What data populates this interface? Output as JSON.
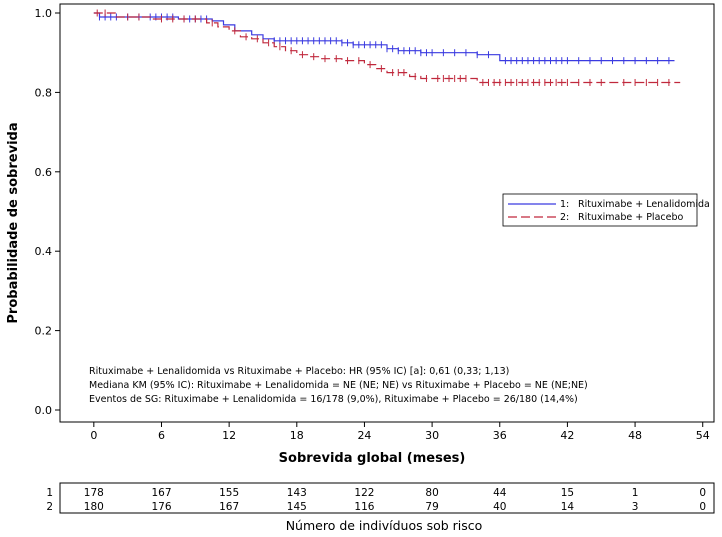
{
  "chart_data": {
    "type": "line",
    "subtype": "kaplan-meier",
    "xlabel": "Sobrevida global (meses)",
    "ylabel": "Probabilidade de sobrevida",
    "xlim": [
      -3,
      55
    ],
    "ylim": [
      0,
      1.0
    ],
    "xticks": [
      "0",
      "6",
      "12",
      "18",
      "24",
      "30",
      "36",
      "42",
      "48",
      "54"
    ],
    "yticks": [
      "0.0",
      "0.2",
      "0.4",
      "0.6",
      "0.8",
      "1.0"
    ],
    "legend_position": "right",
    "series": [
      {
        "name": "Rituximabe + Lenalidomida",
        "legend_number": "1:",
        "color": "#3a3ae0",
        "style": "solid",
        "steps": [
          [
            0,
            1.0
          ],
          [
            0.5,
            0.99
          ],
          [
            7.5,
            0.985
          ],
          [
            10.5,
            0.98
          ],
          [
            11.5,
            0.97
          ],
          [
            12.5,
            0.955
          ],
          [
            14,
            0.945
          ],
          [
            15,
            0.935
          ],
          [
            16,
            0.93
          ],
          [
            18,
            0.93
          ],
          [
            22,
            0.925
          ],
          [
            23,
            0.92
          ],
          [
            26,
            0.91
          ],
          [
            27,
            0.905
          ],
          [
            29,
            0.9
          ],
          [
            34,
            0.895
          ],
          [
            36,
            0.88
          ],
          [
            51.5,
            0.88
          ]
        ],
        "censors": [
          0.5,
          1,
          1.5,
          2,
          3,
          4,
          5,
          5.5,
          6,
          6.5,
          7,
          8,
          8.5,
          9,
          9.5,
          10,
          16,
          16.5,
          17,
          17.5,
          18,
          18.5,
          19,
          19.5,
          20,
          20.5,
          21,
          21.5,
          22,
          22.5,
          23,
          23.5,
          24,
          24.5,
          25,
          25.5,
          26,
          26.5,
          27,
          27.5,
          28,
          28.5,
          29,
          29.5,
          30,
          31,
          32,
          33,
          34,
          35,
          36.5,
          37,
          37.5,
          38,
          38.5,
          39,
          39.5,
          40,
          40.5,
          41,
          41.5,
          42,
          43,
          44,
          45,
          46,
          47,
          48,
          49,
          50,
          51
        ]
      },
      {
        "name": "Rituximabe + Placebo",
        "legend_number": "2:",
        "color": "#c0283c",
        "style": "dashed",
        "steps": [
          [
            0,
            1.0
          ],
          [
            2,
            0.99
          ],
          [
            5,
            0.985
          ],
          [
            10,
            0.975
          ],
          [
            11,
            0.965
          ],
          [
            12,
            0.955
          ],
          [
            13,
            0.94
          ],
          [
            14,
            0.935
          ],
          [
            15,
            0.925
          ],
          [
            16,
            0.915
          ],
          [
            17,
            0.905
          ],
          [
            18,
            0.895
          ],
          [
            19,
            0.89
          ],
          [
            20,
            0.885
          ],
          [
            22,
            0.88
          ],
          [
            24,
            0.87
          ],
          [
            25,
            0.86
          ],
          [
            26,
            0.85
          ],
          [
            28,
            0.84
          ],
          [
            29,
            0.835
          ],
          [
            30,
            0.835
          ],
          [
            34,
            0.825
          ],
          [
            52,
            0.825
          ]
        ],
        "censors": [
          0.3,
          1,
          3,
          4,
          6,
          7,
          8,
          9,
          10.5,
          12.5,
          13.5,
          14.5,
          15.5,
          16.5,
          17.5,
          18.5,
          19.5,
          20.5,
          21.5,
          22.5,
          23.5,
          24.5,
          25.5,
          26.5,
          27,
          27.5,
          28.5,
          29.5,
          30.5,
          31,
          31.5,
          32,
          32.5,
          33,
          34.5,
          35,
          35.5,
          36,
          36.5,
          37,
          37.5,
          38,
          38.5,
          39,
          39.5,
          40,
          40.5,
          41,
          41.5,
          42,
          43,
          44,
          45,
          47,
          48,
          49,
          50,
          51
        ]
      }
    ],
    "annotations": [
      "Rituximabe + Lenalidomida vs Rituximabe + Placebo: HR (95% IC) [a]: 0,61 (0,33; 1,13)",
      "Mediana KM (95% IC): Rituximabe + Lenalidomida = NE (NE; NE) vs Rituximabe + Placebo = NE (NE;NE)",
      "Eventos de SG: Rituximabe + Lenalidomida = 16/178 (9,0%), Rituximabe + Placebo = 26/180 (14,4%)"
    ],
    "risk_table": {
      "title": "Número de indivíduos sob risco",
      "times": [
        0,
        6,
        12,
        18,
        24,
        30,
        36,
        42,
        48,
        54
      ],
      "rows": [
        {
          "label": "1",
          "values": [
            "178",
            "167",
            "155",
            "143",
            "122",
            "80",
            "44",
            "15",
            "1",
            "0"
          ]
        },
        {
          "label": "2",
          "values": [
            "180",
            "176",
            "167",
            "145",
            "116",
            "79",
            "40",
            "14",
            "3",
            "0"
          ]
        }
      ]
    }
  }
}
